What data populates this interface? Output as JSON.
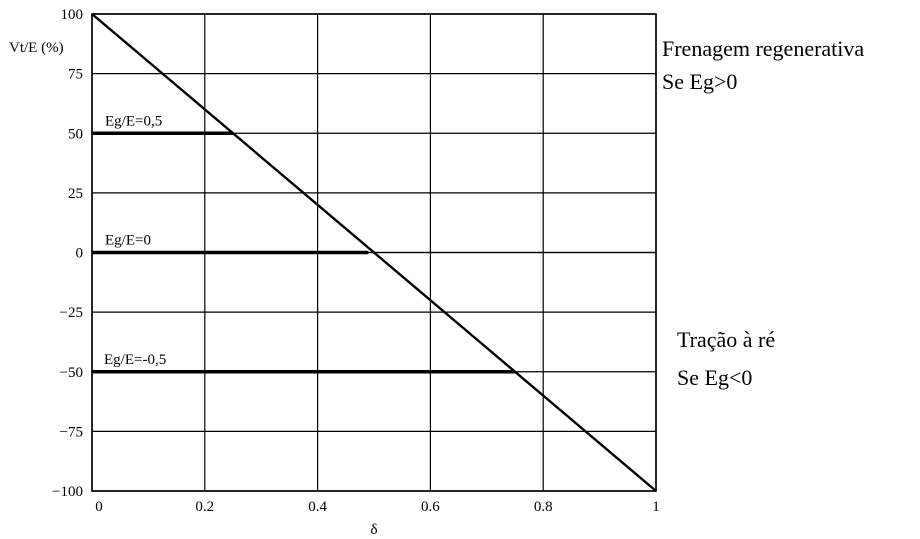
{
  "chart_data": {
    "type": "line",
    "ylabel": "Vt/E (%)",
    "xlabel": "δ",
    "xlim": [
      0,
      1
    ],
    "ylim": [
      -100,
      100
    ],
    "x_ticks": [
      0,
      0.2,
      0.4,
      0.6,
      0.8,
      1
    ],
    "x_tick_labels": [
      "0",
      "0.2",
      "0.4",
      "0.6",
      "0.8",
      "1"
    ],
    "y_ticks": [
      100,
      75,
      50,
      25,
      0,
      -25,
      -50,
      -75,
      -100
    ],
    "y_tick_labels": [
      "100",
      "75",
      "50",
      "25",
      "0",
      "−25",
      "−50",
      "−75",
      "−100"
    ],
    "grid": true,
    "main_line": {
      "x": [
        0,
        1
      ],
      "y": [
        100,
        -100
      ]
    },
    "series": [
      {
        "name": "Eg/E=0,5",
        "level": 50,
        "x_end": 0.25
      },
      {
        "name": "Eg/E=0",
        "level": 0,
        "x_end": 0.49,
        "extends_to_right": true
      },
      {
        "name": "Eg/E=-0,5",
        "level": -50,
        "x_end": 0.75
      }
    ],
    "annotations": {
      "top": [
        "Frenagem regenerativa",
        "Se Eg>0"
      ],
      "bottom": [
        "Tração à ré",
        "Se Eg<0"
      ]
    }
  }
}
